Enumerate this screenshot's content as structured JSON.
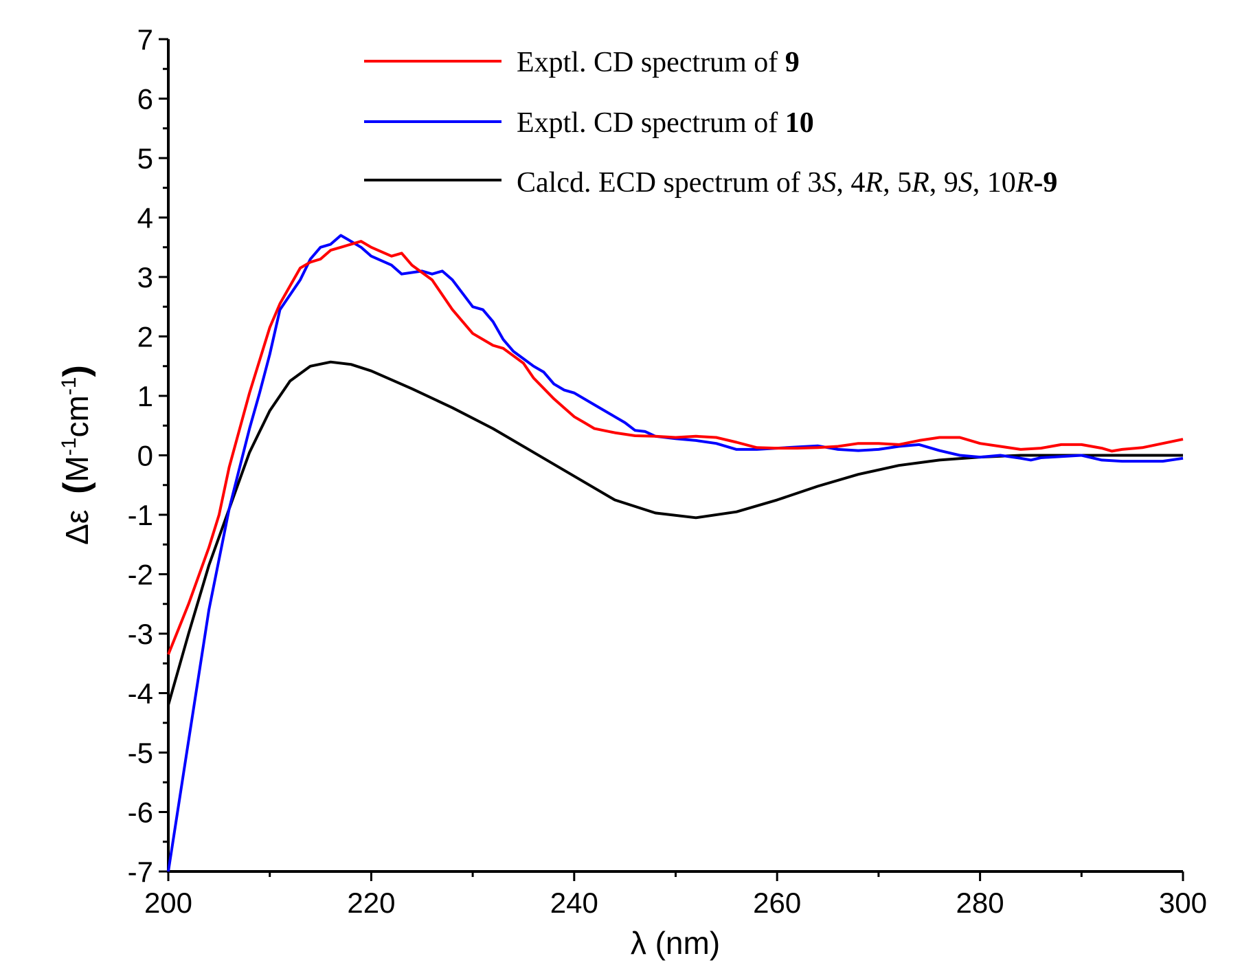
{
  "chart_data": {
    "type": "line",
    "xlabel": "λ (nm)",
    "ylabel_parts": {
      "prefix": "Δε",
      "open": "(",
      "m": "M",
      "exp1": "-1",
      "cm": "cm",
      "exp2": "-1",
      "close": ")"
    },
    "xlim": [
      200,
      300
    ],
    "ylim": [
      -7,
      7
    ],
    "x_ticks": [
      "200",
      "220",
      "240",
      "260",
      "280",
      "300"
    ],
    "y_ticks": [
      "7",
      "6",
      "5",
      "4",
      "3",
      "2",
      "1",
      "0",
      "-1",
      "-2",
      "-3",
      "-4",
      "-5",
      "-6",
      "-7"
    ],
    "legend_position": "top-right",
    "series": [
      {
        "name": "Exptl. CD spectrum of 9",
        "label_plain": "Exptl. CD spectrum of ",
        "label_bold": "9",
        "color": "#ff0000",
        "x": [
          200,
          202,
          204,
          205,
          206,
          208,
          210,
          211,
          212,
          213,
          214,
          215,
          216,
          217,
          218,
          219,
          220,
          222,
          223,
          224,
          226,
          228,
          230,
          232,
          233,
          235,
          236,
          238,
          239,
          240,
          241,
          242,
          244,
          246,
          248,
          250,
          252,
          254,
          256,
          258,
          260,
          262,
          264,
          266,
          268,
          270,
          272,
          274,
          276,
          278,
          280,
          282,
          284,
          286,
          288,
          290,
          292,
          293,
          294,
          296,
          298,
          300
        ],
        "y": [
          -3.35,
          -2.5,
          -1.55,
          -1.0,
          -0.2,
          1.05,
          2.15,
          2.55,
          2.85,
          3.15,
          3.25,
          3.3,
          3.45,
          3.5,
          3.55,
          3.6,
          3.5,
          3.35,
          3.4,
          3.2,
          2.95,
          2.45,
          2.05,
          1.85,
          1.8,
          1.55,
          1.3,
          0.95,
          0.8,
          0.65,
          0.55,
          0.45,
          0.38,
          0.33,
          0.32,
          0.3,
          0.32,
          0.3,
          0.22,
          0.13,
          0.12,
          0.12,
          0.13,
          0.15,
          0.2,
          0.2,
          0.18,
          0.25,
          0.3,
          0.3,
          0.2,
          0.15,
          0.1,
          0.12,
          0.18,
          0.18,
          0.12,
          0.07,
          0.1,
          0.13,
          0.2,
          0.27
        ]
      },
      {
        "name": "Exptl. CD spectrum of 10",
        "label_plain": "Exptl. CD spectrum of ",
        "label_bold": "10",
        "color": "#0000ff",
        "x": [
          200,
          202,
          204,
          206,
          208,
          209,
          210,
          211,
          212,
          213,
          214,
          215,
          216,
          217,
          218,
          219,
          220,
          222,
          223,
          225,
          226,
          227,
          228,
          230,
          231,
          232,
          233,
          234,
          236,
          237,
          238,
          239,
          240,
          242,
          244,
          245,
          246,
          247,
          248,
          250,
          252,
          254,
          256,
          258,
          260,
          262,
          264,
          266,
          268,
          270,
          272,
          274,
          276,
          278,
          280,
          282,
          284,
          285,
          286,
          288,
          290,
          292,
          294,
          296,
          298,
          300
        ],
        "y": [
          -7.0,
          -4.8,
          -2.6,
          -0.9,
          0.45,
          1.05,
          1.7,
          2.45,
          2.7,
          2.95,
          3.3,
          3.5,
          3.55,
          3.7,
          3.6,
          3.5,
          3.35,
          3.2,
          3.05,
          3.1,
          3.05,
          3.1,
          2.95,
          2.5,
          2.45,
          2.25,
          1.95,
          1.75,
          1.5,
          1.4,
          1.2,
          1.1,
          1.05,
          0.85,
          0.65,
          0.55,
          0.42,
          0.4,
          0.32,
          0.28,
          0.25,
          0.2,
          0.1,
          0.1,
          0.12,
          0.14,
          0.16,
          0.1,
          0.08,
          0.1,
          0.15,
          0.18,
          0.08,
          0.0,
          -0.03,
          0.0,
          -0.05,
          -0.08,
          -0.04,
          -0.02,
          0.0,
          -0.08,
          -0.1,
          -0.1,
          -0.1,
          -0.05
        ]
      },
      {
        "name": "Calcd. ECD spectrum of 3S, 4R, 5R, 9S, 10R-9",
        "label_parts": [
          {
            "text": "Calcd. ECD spectrum of 3",
            "style": "normal"
          },
          {
            "text": "S",
            "style": "italic"
          },
          {
            "text": ", 4",
            "style": "normal"
          },
          {
            "text": "R",
            "style": "italic"
          },
          {
            "text": ", 5",
            "style": "normal"
          },
          {
            "text": "R",
            "style": "italic"
          },
          {
            "text": ", 9",
            "style": "normal"
          },
          {
            "text": "S",
            "style": "italic"
          },
          {
            "text": ", 10",
            "style": "normal"
          },
          {
            "text": "R",
            "style": "italic"
          },
          {
            "text": "-9",
            "style": "bold"
          }
        ],
        "color": "#000000",
        "x": [
          200,
          202,
          204,
          206,
          208,
          210,
          212,
          214,
          216,
          218,
          220,
          224,
          228,
          232,
          236,
          240,
          244,
          248,
          252,
          256,
          260,
          264,
          268,
          272,
          276,
          280,
          284,
          290,
          300
        ],
        "y": [
          -4.2,
          -3.0,
          -1.85,
          -0.9,
          0.05,
          0.75,
          1.25,
          1.5,
          1.57,
          1.53,
          1.42,
          1.12,
          0.8,
          0.45,
          0.05,
          -0.35,
          -0.75,
          -0.97,
          -1.05,
          -0.95,
          -0.75,
          -0.52,
          -0.32,
          -0.17,
          -0.08,
          -0.03,
          0.0,
          0.0,
          0.0
        ]
      }
    ]
  }
}
